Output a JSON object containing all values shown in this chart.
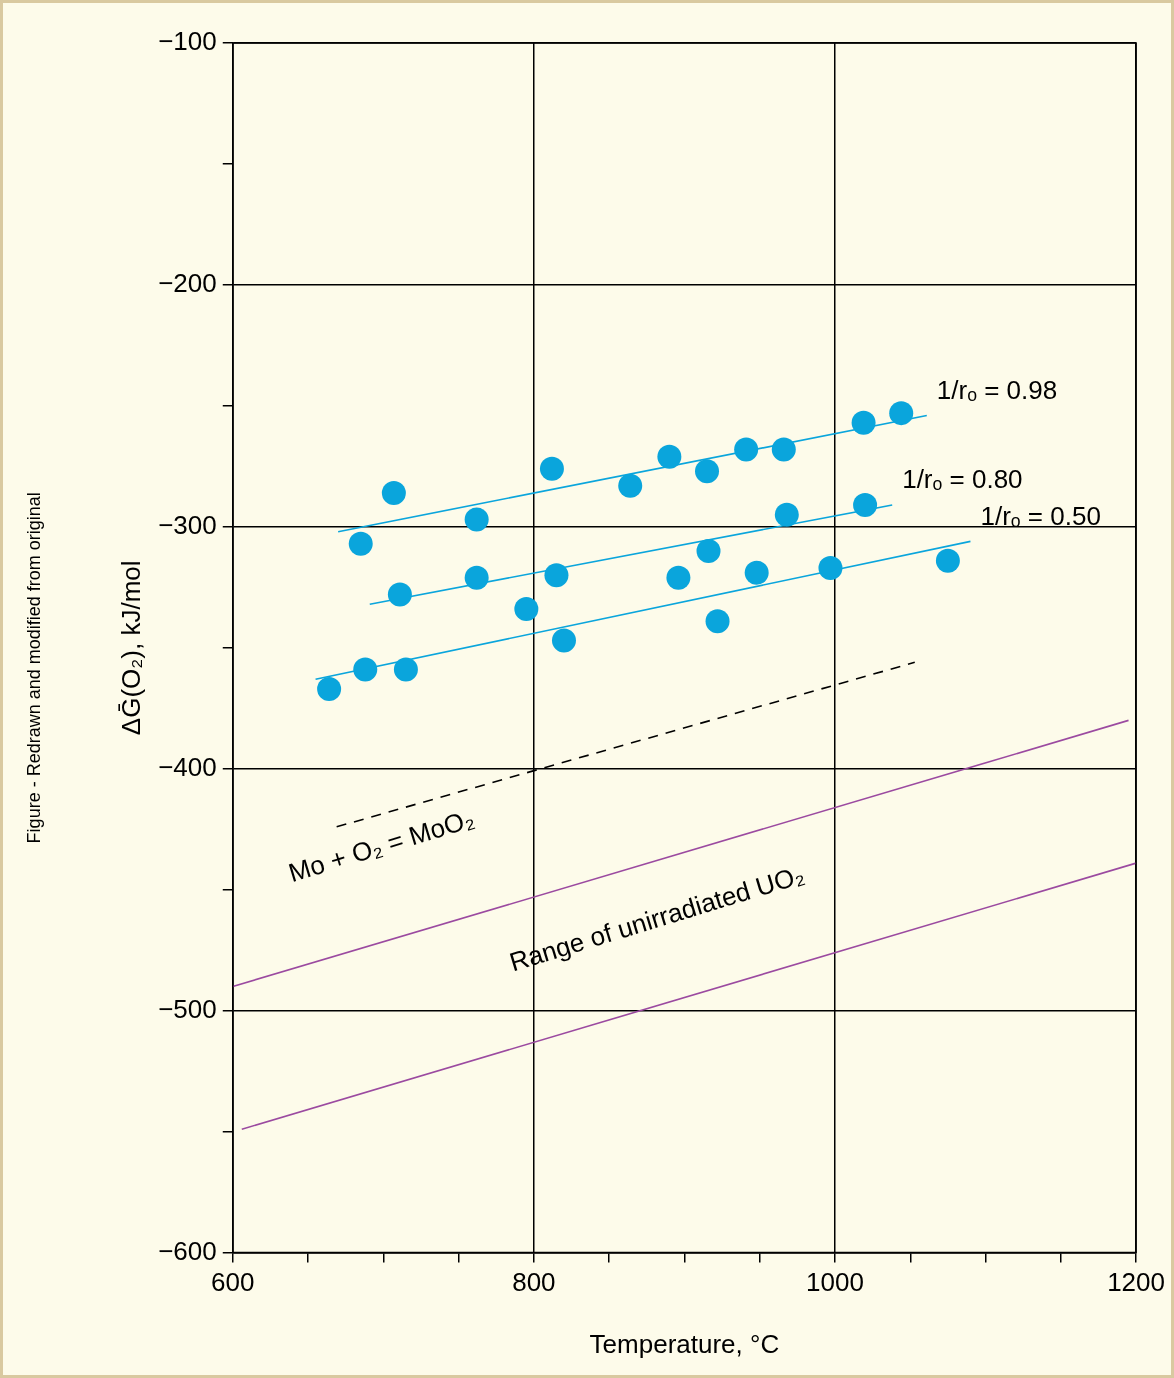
{
  "chart_data": {
    "type": "scatter",
    "xlabel": "Temperature, °C",
    "ylabel": "ΔḠ(O₂), kJ/mol",
    "xlim": [
      600,
      1200
    ],
    "ylim": [
      -600,
      -100
    ],
    "xticks": [
      600,
      {
        "value": 650,
        "label": null
      },
      {
        "value": 700,
        "label": null
      },
      {
        "value": 750,
        "label": null
      },
      800,
      {
        "value": 850,
        "label": null
      },
      {
        "value": 900,
        "label": null
      },
      {
        "value": 950,
        "label": null
      },
      1000,
      {
        "value": 1050,
        "label": null
      },
      {
        "value": 1100,
        "label": null
      },
      {
        "value": 1150,
        "label": null
      },
      1200
    ],
    "yticks": [
      -600,
      {
        "value": -550,
        "label": null
      },
      -500,
      {
        "value": -450,
        "label": null
      },
      -400,
      {
        "value": -350,
        "label": null
      },
      -300,
      {
        "value": -250,
        "label": null
      },
      -200,
      {
        "value": -150,
        "label": null
      },
      -100
    ],
    "grid": true,
    "legend": false,
    "series": [
      {
        "type": "scatter",
        "marker": "circle",
        "color": "#0aa5dc",
        "x": [
          664,
          688,
          715,
          685,
          707,
          711,
          762,
          762,
          795,
          812,
          815,
          820,
          864,
          890,
          896,
          915,
          916,
          922,
          941,
          948,
          966,
          968,
          997,
          1019,
          1020,
          1044,
          1075
        ],
        "values": [
          -367,
          -359,
          -359,
          -307,
          -286,
          -328,
          -297,
          -321,
          -334,
          -276,
          -320,
          -347,
          -283,
          -271,
          -321,
          -277,
          -310,
          -339,
          -268,
          -319,
          -268,
          -295,
          -317,
          -257,
          -291,
          -253,
          -314
        ]
      },
      {
        "type": "line",
        "marker": "none",
        "name": "1/rₒ = 0.98",
        "color": "#0aa5dc",
        "x": [
          670,
          1061
        ],
        "values": [
          -302,
          -254
        ]
      },
      {
        "type": "line",
        "marker": "none",
        "name": "1/rₒ = 0.80",
        "color": "#0aa5dc",
        "x": [
          691,
          1038
        ],
        "values": [
          -332,
          -291
        ]
      },
      {
        "type": "line",
        "marker": "none",
        "name": "1/rₒ = 0.50",
        "color": "#0aa5dc",
        "x": [
          655,
          1090
        ],
        "values": [
          -363,
          -306
        ]
      },
      {
        "type": "line",
        "marker": "none",
        "line_style": "dashed",
        "color": "#000000",
        "x": [
          669,
          1053
        ],
        "values": [
          -424,
          -356
        ]
      },
      {
        "type": "line",
        "marker": "none",
        "color": "#9b4aa0",
        "x": [
          600,
          1195
        ],
        "values": [
          -490,
          -380
        ]
      },
      {
        "type": "line",
        "marker": "none",
        "color": "#9b4aa0",
        "x": [
          606,
          1200
        ],
        "values": [
          -549,
          -439
        ]
      }
    ],
    "annotations": [
      "Mo + O₂ = MoO₂",
      "Range of unirradiated UO₂",
      "Figure - Redrawn and modified from original"
    ]
  }
}
